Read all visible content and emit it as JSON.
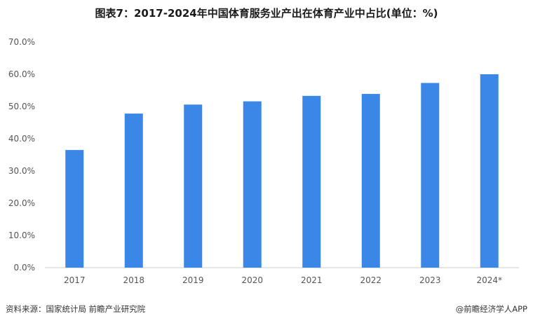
{
  "chart_data": {
    "type": "bar",
    "title": "图表7：2017-2024年中国体育服务业产出在体育产业中占比(单位：%)",
    "categories": [
      "2017",
      "2018",
      "2019",
      "2020",
      "2021",
      "2022",
      "2023",
      "2024*"
    ],
    "values": [
      36.5,
      47.8,
      50.6,
      51.6,
      53.3,
      53.9,
      57.3,
      60.0
    ],
    "ylim": [
      0,
      70
    ],
    "yticks": [
      "0.0%",
      "10.0%",
      "20.0%",
      "30.0%",
      "40.0%",
      "50.0%",
      "60.0%",
      "70.0%"
    ],
    "xlabel": "",
    "ylabel": "",
    "grid": false,
    "bar_color": "#3a87e8"
  },
  "footer": {
    "source": "资料来源：国家统计局 前瞻产业研究院",
    "brand": "@前瞻经济学人APP"
  }
}
